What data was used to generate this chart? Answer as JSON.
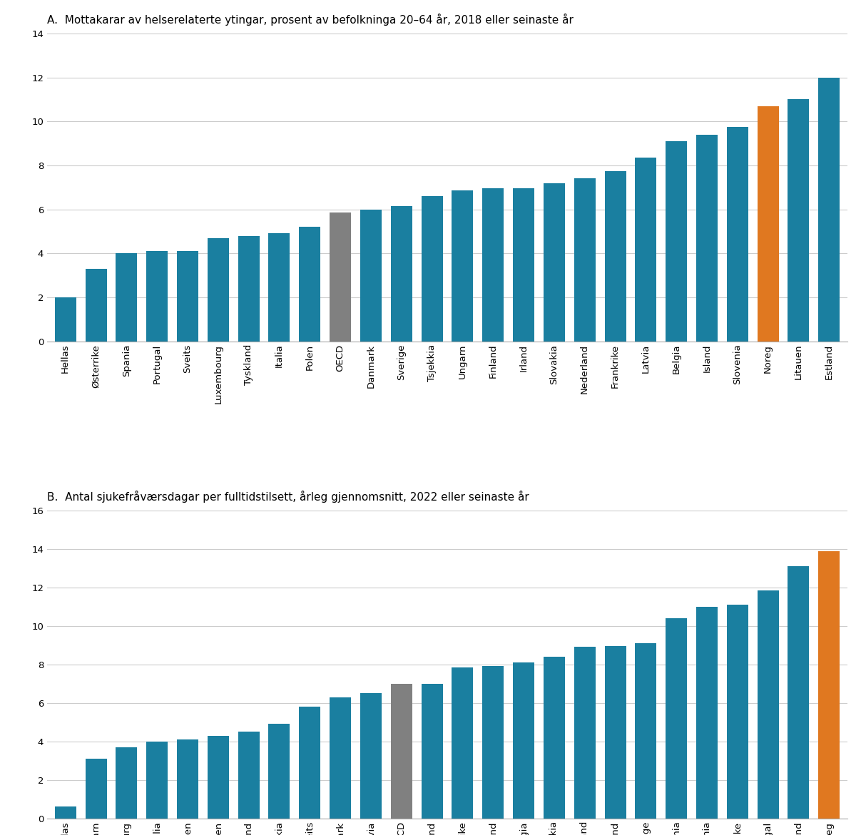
{
  "panel_a": {
    "title": "A.  Mottakarar av helserelaterte ytingar, prosent av befolkninga 20–64 år, 2018 eller seinaste år",
    "categories": [
      "Hellas",
      "Østerrike",
      "Spania",
      "Portugal",
      "Sveits",
      "Luxembourg",
      "Tyskland",
      "Italia",
      "Polen",
      "OECD",
      "Danmark",
      "Sverige",
      "Tsjekkia",
      "Ungarn",
      "Finland",
      "Irland",
      "Slovakia",
      "Nederland",
      "Frankrike",
      "Latvia",
      "Belgia",
      "Island",
      "Slovenia",
      "Noreg",
      "Litauen",
      "Estland"
    ],
    "values": [
      2.0,
      3.3,
      4.0,
      4.1,
      4.1,
      4.7,
      4.8,
      4.9,
      5.2,
      5.85,
      6.0,
      6.15,
      6.6,
      6.85,
      6.95,
      6.95,
      7.2,
      7.4,
      7.75,
      8.35,
      9.1,
      9.4,
      9.75,
      10.7,
      11.0,
      12.0
    ],
    "colors": [
      "#1a7fa0",
      "#1a7fa0",
      "#1a7fa0",
      "#1a7fa0",
      "#1a7fa0",
      "#1a7fa0",
      "#1a7fa0",
      "#1a7fa0",
      "#1a7fa0",
      "#808080",
      "#1a7fa0",
      "#1a7fa0",
      "#1a7fa0",
      "#1a7fa0",
      "#1a7fa0",
      "#1a7fa0",
      "#1a7fa0",
      "#1a7fa0",
      "#1a7fa0",
      "#1a7fa0",
      "#1a7fa0",
      "#1a7fa0",
      "#1a7fa0",
      "#e07820",
      "#1a7fa0",
      "#1a7fa0"
    ],
    "ylim": [
      0,
      14
    ],
    "yticks": [
      0,
      2,
      4,
      6,
      8,
      10,
      12,
      14
    ]
  },
  "panel_b": {
    "title": "B.  Antal sjukefråværsdagar per fulltidstilsett, årleg gjennomsnitt, 2022 eller seinaste år",
    "categories": [
      "Hellas",
      "Ungarn",
      "Luxembourg",
      "Italia",
      "Litauen",
      "Polen",
      "Irland",
      "Slovakia",
      "Sveits",
      "Danmark",
      "Latvia",
      "OECD",
      "Nederland",
      "Østerrike",
      "Island",
      "Belgia",
      "Tsjekkia",
      "Tyskland",
      "Estland",
      "Sverige",
      "Slovenia",
      "Spania",
      "Frankrike",
      "Portugal",
      "Finland",
      "Noreg"
    ],
    "values": [
      0.6,
      3.1,
      3.7,
      4.0,
      4.1,
      4.3,
      4.5,
      4.9,
      5.8,
      6.3,
      6.5,
      7.0,
      7.0,
      7.85,
      7.9,
      8.1,
      8.4,
      8.9,
      8.95,
      9.1,
      10.4,
      11.0,
      11.1,
      11.85,
      13.1,
      13.9
    ],
    "colors": [
      "#1a7fa0",
      "#1a7fa0",
      "#1a7fa0",
      "#1a7fa0",
      "#1a7fa0",
      "#1a7fa0",
      "#1a7fa0",
      "#1a7fa0",
      "#1a7fa0",
      "#1a7fa0",
      "#1a7fa0",
      "#808080",
      "#1a7fa0",
      "#1a7fa0",
      "#1a7fa0",
      "#1a7fa0",
      "#1a7fa0",
      "#1a7fa0",
      "#1a7fa0",
      "#1a7fa0",
      "#1a7fa0",
      "#1a7fa0",
      "#1a7fa0",
      "#1a7fa0",
      "#1a7fa0",
      "#e07820"
    ],
    "ylim": [
      0,
      16
    ],
    "yticks": [
      0,
      2,
      4,
      6,
      8,
      10,
      12,
      14,
      16
    ]
  },
  "background_color": "#ffffff",
  "bar_teal": "#1a7fa0",
  "bar_orange": "#e07820",
  "bar_gray": "#808080",
  "title_fontsize": 11,
  "tick_fontsize": 9.5,
  "grid_color": "#cccccc"
}
